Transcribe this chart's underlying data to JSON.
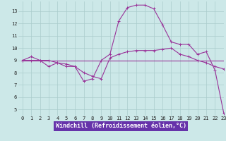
{
  "xlabel": "Windchill (Refroidissement éolien,°C)",
  "bg_color": "#cce8e8",
  "line_color": "#993399",
  "grid_color": "#aacccc",
  "xlim": [
    -0.5,
    23
  ],
  "ylim": [
    4.5,
    13.8
  ],
  "yticks": [
    5,
    6,
    7,
    8,
    9,
    10,
    11,
    12,
    13
  ],
  "xticks": [
    0,
    1,
    2,
    3,
    4,
    5,
    6,
    7,
    8,
    9,
    10,
    11,
    12,
    13,
    14,
    15,
    16,
    17,
    18,
    19,
    20,
    21,
    22,
    23
  ],
  "line1_x": [
    0,
    1,
    2,
    3,
    4,
    5,
    6,
    7,
    8,
    9,
    10,
    11,
    12,
    13,
    14,
    15,
    16,
    17,
    18,
    19,
    20,
    21,
    22,
    23
  ],
  "line1_y": [
    9.0,
    9.3,
    9.0,
    8.5,
    8.8,
    8.5,
    8.5,
    7.3,
    7.5,
    9.0,
    9.5,
    12.2,
    13.3,
    13.5,
    13.5,
    13.2,
    11.9,
    10.5,
    10.3,
    10.3,
    9.5,
    9.7,
    8.2,
    4.7
  ],
  "line2_x": [
    0,
    1,
    2,
    3,
    4,
    5,
    6,
    7,
    8,
    9,
    10,
    11,
    12,
    13,
    14,
    15,
    16,
    17,
    18,
    19,
    20,
    21,
    22,
    23
  ],
  "line2_y": [
    9.0,
    9.0,
    9.0,
    9.0,
    8.8,
    8.7,
    8.5,
    8.0,
    7.7,
    7.5,
    9.2,
    9.5,
    9.7,
    9.8,
    9.8,
    9.8,
    9.9,
    10.0,
    9.5,
    9.3,
    9.0,
    8.8,
    8.5,
    8.3
  ],
  "line3_x": [
    0,
    23
  ],
  "line3_y": [
    9.0,
    9.0
  ],
  "marker": "+",
  "markersize": 3,
  "linewidth": 0.8,
  "tick_fontsize": 5,
  "xlabel_fontsize": 6,
  "xlabel_bg": "#6633aa",
  "xlabel_fg": "#ffffff"
}
